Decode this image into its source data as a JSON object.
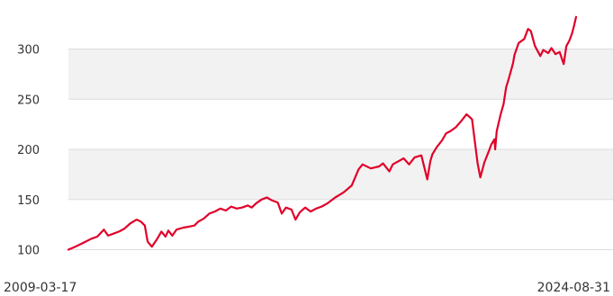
{
  "chart_data": {
    "type": "line",
    "title": "",
    "xlabel": "",
    "ylabel": "",
    "x_range": [
      "2009-03-17",
      "2024-08-31"
    ],
    "x_tick_labels": [
      "2009-03-17",
      "2024-08-31"
    ],
    "y_ticks": [
      100,
      150,
      200,
      250,
      300
    ],
    "ylim": [
      100,
      332
    ],
    "grid": "alternating horizontal bands",
    "legend": "none",
    "colors": {
      "line": "#e0002a",
      "band": "#f2f2f2",
      "grid": "#dcdcdc",
      "text": "#333333"
    },
    "series": [
      {
        "x": [
          "2009-03-17",
          "2009-06-01",
          "2009-09-01",
          "2009-12-01",
          "2010-02-01",
          "2010-04-15",
          "2010-06-01",
          "2010-08-01",
          "2010-10-01",
          "2010-12-01",
          "2011-02-01",
          "2011-04-15",
          "2011-06-01",
          "2011-07-15",
          "2011-08-15",
          "2011-10-01",
          "2011-12-01",
          "2012-01-15",
          "2012-03-01",
          "2012-04-01",
          "2012-05-15",
          "2012-07-01",
          "2012-09-15",
          "2012-11-15",
          "2013-01-15",
          "2013-03-01",
          "2013-05-01",
          "2013-07-01",
          "2013-09-01",
          "2013-11-01",
          "2014-01-01",
          "2014-03-01",
          "2014-05-01",
          "2014-07-01",
          "2014-09-01",
          "2014-10-15",
          "2014-12-01",
          "2015-02-01",
          "2015-04-01",
          "2015-06-01",
          "2015-08-01",
          "2015-09-15",
          "2015-11-01",
          "2016-01-01",
          "2016-02-15",
          "2016-04-01",
          "2016-06-01",
          "2016-08-01",
          "2016-10-01",
          "2016-12-01",
          "2017-02-01",
          "2017-05-01",
          "2017-08-01",
          "2017-11-01",
          "2018-01-15",
          "2018-03-01",
          "2018-06-01",
          "2018-09-01",
          "2018-10-15",
          "2018-12-24",
          "2019-02-01",
          "2019-04-01",
          "2019-06-01",
          "2019-08-01",
          "2019-10-01",
          "2019-12-15",
          "2020-02-19",
          "2020-03-23",
          "2020-04-15",
          "2020-06-01",
          "2020-08-01",
          "2020-09-15",
          "2020-11-01",
          "2021-01-01",
          "2021-03-01",
          "2021-05-01",
          "2021-07-01",
          "2021-09-01",
          "2021-10-01",
          "2021-11-15",
          "2022-01-03",
          "2022-02-01",
          "2022-03-07",
          "2022-03-15",
          "2022-04-01",
          "2022-05-15",
          "2022-06-16",
          "2022-07-15",
          "2022-08-15",
          "2022-09-30",
          "2022-10-15",
          "2022-12-01",
          "2023-02-01",
          "2023-03-15",
          "2023-04-15",
          "2023-06-01",
          "2023-07-31",
          "2023-09-01",
          "2023-10-27",
          "2023-12-01",
          "2024-01-15",
          "2024-03-01",
          "2024-04-15",
          "2024-05-15",
          "2024-06-15",
          "2024-07-15",
          "2024-08-05",
          "2024-08-31"
        ],
        "values": [
          100,
          103,
          107,
          111,
          113,
          120,
          114,
          116,
          118,
          121,
          126,
          130,
          128,
          124,
          108,
          103,
          111,
          118,
          113,
          119,
          114,
          120,
          122,
          123,
          124,
          128,
          131,
          136,
          138,
          141,
          139,
          143,
          141,
          142,
          144,
          142,
          146,
          150,
          152,
          149,
          147,
          136,
          142,
          140,
          130,
          137,
          142,
          138,
          141,
          143,
          146,
          152,
          157,
          164,
          180,
          185,
          181,
          183,
          186,
          178,
          185,
          188,
          191,
          185,
          192,
          194,
          170,
          188,
          195,
          202,
          209,
          216,
          218,
          222,
          228,
          235,
          230,
          186,
          172,
          187,
          198,
          205,
          210,
          200,
          218,
          235,
          245,
          262,
          271,
          286,
          294,
          306,
          310,
          320,
          318,
          303,
          293,
          299,
          296,
          301,
          295,
          297,
          285,
          303,
          308,
          315,
          322,
          332
        ]
      }
    ]
  }
}
